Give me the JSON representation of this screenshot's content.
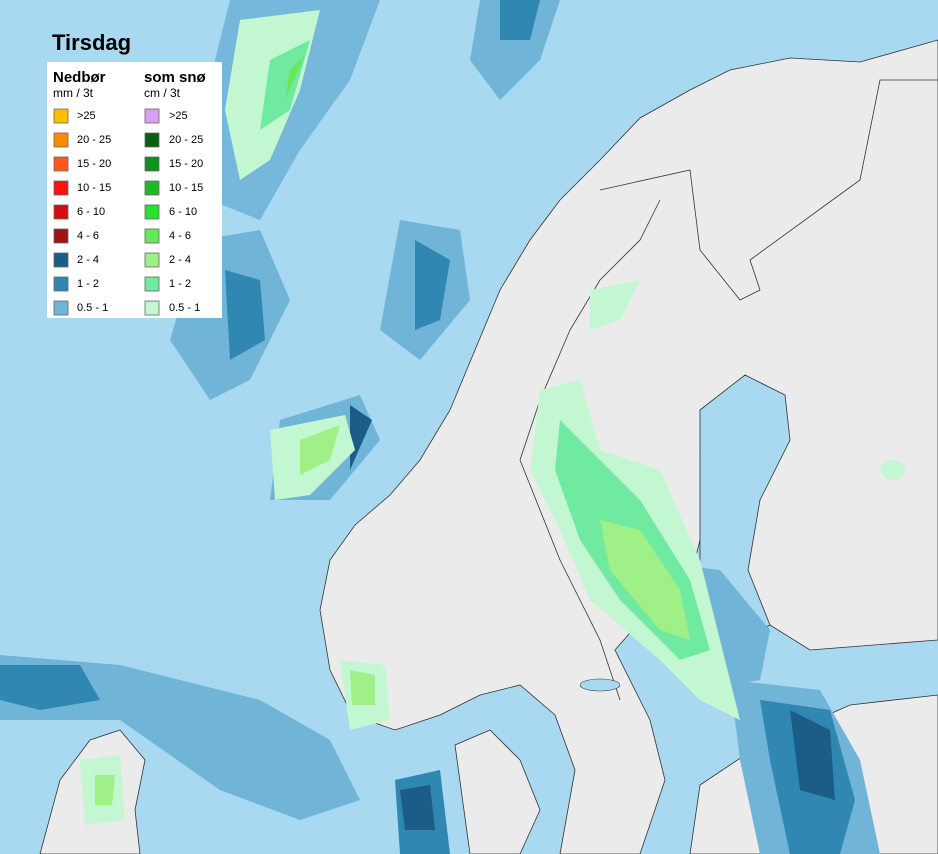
{
  "title": "Tirsdag",
  "legend": {
    "rain": {
      "header": "Nedbør",
      "unit": "mm / 3t",
      "items": [
        {
          "label": ">25",
          "color": "#ffc000"
        },
        {
          "label": "20 - 25",
          "color": "#ff8a00"
        },
        {
          "label": "15 - 20",
          "color": "#ff5a1a"
        },
        {
          "label": "10 - 15",
          "color": "#ff1010"
        },
        {
          "label": "6 - 10",
          "color": "#d01010"
        },
        {
          "label": "4 - 6",
          "color": "#9a1410"
        },
        {
          "label": "2 - 4",
          "color": "#1b5d86"
        },
        {
          "label": "1 - 2",
          "color": "#2f87b2"
        },
        {
          "label": "0.5 - 1",
          "color": "#70b4d8"
        }
      ]
    },
    "snow": {
      "header": "som snø",
      "unit": "cm / 3t",
      "items": [
        {
          "label": ">25",
          "color": "#d7a0f0"
        },
        {
          "label": "20 - 25",
          "color": "#0a5e14"
        },
        {
          "label": "15 - 20",
          "color": "#10901c"
        },
        {
          "label": "10 - 15",
          "color": "#20b82a"
        },
        {
          "label": "6 - 10",
          "color": "#28e030"
        },
        {
          "label": "4 - 6",
          "color": "#66e85a"
        },
        {
          "label": "2 - 4",
          "color": "#a0f088"
        },
        {
          "label": "1 - 2",
          "color": "#70eaa0"
        },
        {
          "label": "0.5 - 1",
          "color": "#c2f7d2"
        }
      ]
    }
  }
}
